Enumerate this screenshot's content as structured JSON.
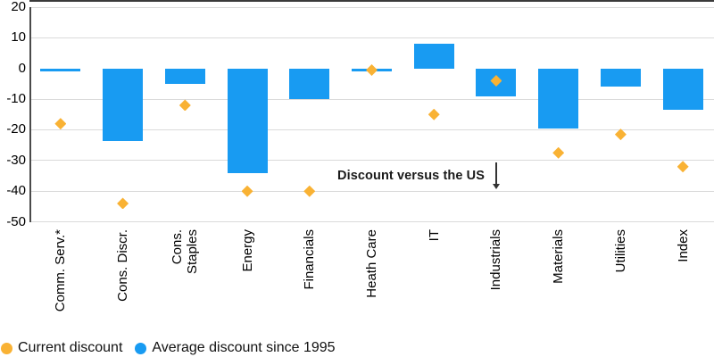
{
  "colors": {
    "bar_blue": "#189BF2",
    "diamond_yellow": "#F9B234",
    "zero_line": "#3A3A3A",
    "gridline": "#DADADA",
    "axis_line": "#4A4A4A",
    "text": "#000000"
  },
  "chart_data": {
    "type": "bar",
    "categories": [
      "Comm. Serv.*",
      "Cons. Discr.",
      "Cons.\nStaples",
      "Energy",
      "Financials",
      "Heath Care",
      "IT",
      "Industrials",
      "Materials",
      "Utilities",
      "Index"
    ],
    "series": [
      {
        "name": "Average discount since 1995",
        "type": "bar",
        "marker": "bar",
        "color": "#189BF2",
        "values": [
          -1,
          -23.5,
          -5,
          -34,
          -10,
          -1,
          8,
          -9,
          -19.5,
          -6,
          -13.5
        ]
      },
      {
        "name": "Current discount",
        "type": "scatter",
        "marker": "diamond",
        "color": "#F9B234",
        "values": [
          -18,
          -44,
          -12,
          -40,
          -40,
          -0.5,
          -15,
          -4,
          -27.5,
          -21.5,
          -32
        ]
      }
    ],
    "ylim": [
      -50,
      20
    ],
    "yticks": [
      20,
      10,
      0,
      -10,
      -20,
      -30,
      -40,
      -50
    ],
    "grid": true,
    "title": "",
    "xlabel": "",
    "ylabel": "",
    "annotation": {
      "text": "Discount versus the US",
      "arrow": "down"
    },
    "legend_position": "bottom-left"
  },
  "legend": {
    "items": [
      {
        "label": "Current discount",
        "color": "#F9B234",
        "marker": "circle"
      },
      {
        "label": "Average discount since 1995",
        "color": "#189BF2",
        "marker": "circle"
      }
    ]
  }
}
